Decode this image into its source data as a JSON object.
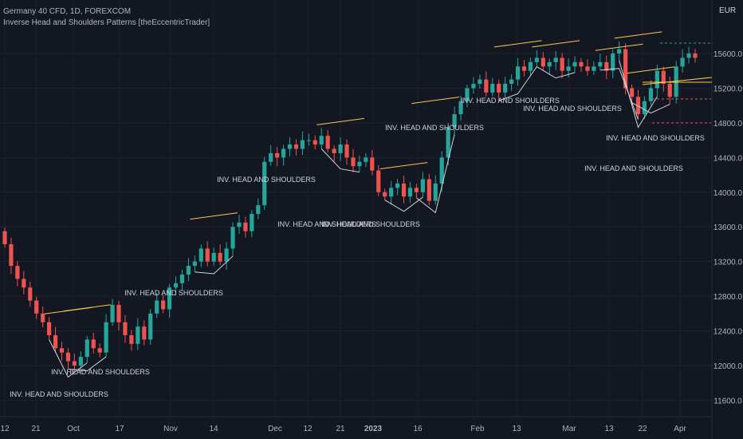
{
  "header": {
    "symbol": "Germany 40 CFD, 1D, FOREXCOM",
    "indicator": "Inverse Head and Shoulders Patterns [theEccentricTrader]",
    "currency": "EUR"
  },
  "chart_data": {
    "type": "candlestick",
    "title": "Germany 40 CFD, 1D, FOREXCOM",
    "instrument": "Germany 40 CFD",
    "timeframe": "1D",
    "ylim": [
      11400,
      16000
    ],
    "y_ticks": [
      11600,
      12000,
      12400,
      12800,
      13200,
      13600,
      14000,
      14400,
      14800,
      15200,
      15600
    ],
    "y_tick_labels": [
      "11600.0",
      "12000.0",
      "12400.0",
      "12800.0",
      "13200.0",
      "13600.0",
      "14000.0",
      "14400.0",
      "14800.0",
      "15200.0",
      "15600.0"
    ],
    "x_tick_labels": [
      "12",
      "21",
      "Oct",
      "17",
      "Nov",
      "14",
      "Dec",
      "12",
      "21",
      "2023",
      "16",
      "Feb",
      "13",
      "Mar",
      "13",
      "22",
      "Apr"
    ],
    "pattern_label": "INV. HEAD AND SHOULDERS",
    "closes_approx": [
      13400,
      13150,
      13000,
      12900,
      12750,
      12600,
      12500,
      12350,
      12200,
      12150,
      12050,
      12000,
      12100,
      12300,
      12200,
      12150,
      12500,
      12700,
      12500,
      12350,
      12250,
      12450,
      12300,
      12600,
      12750,
      12650,
      12900,
      12950,
      13050,
      13150,
      13200,
      13350,
      13200,
      13300,
      13200,
      13350,
      13600,
      13650,
      13550,
      13750,
      13850,
      14350,
      14450,
      14400,
      14500,
      14550,
      14500,
      14600,
      14600,
      14550,
      14650,
      14500,
      14450,
      14550,
      14400,
      14300,
      14350,
      14400,
      14250,
      14000,
      13950,
      14050,
      14100,
      13950,
      14050,
      14000,
      14150,
      13900,
      14100,
      14400,
      14750,
      14900,
      15050,
      15200,
      15250,
      15300,
      15150,
      15250,
      15150,
      15250,
      15300,
      15450,
      15400,
      15500,
      15550,
      15450,
      15500,
      15550,
      15400,
      15450,
      15500,
      15450,
      15400,
      15450,
      15500,
      15400,
      15600,
      15650,
      15200,
      15100,
      14900,
      15050,
      15200,
      15400,
      15250,
      15100,
      15450,
      15550,
      15600,
      15550
    ],
    "pattern_count": 13
  }
}
